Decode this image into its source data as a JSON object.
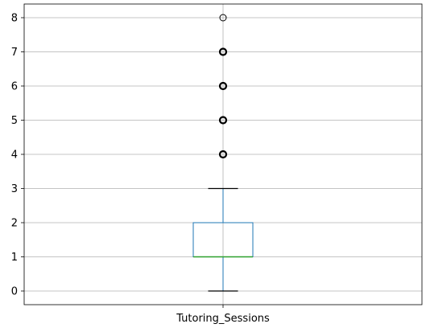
{
  "chart_data": {
    "type": "boxplot",
    "title": "",
    "xlabel": "",
    "ylabel": "",
    "categories": [
      "Tutoring_Sessions"
    ],
    "ylim": [
      -0.4,
      8.4
    ],
    "y_ticks": [
      0,
      1,
      2,
      3,
      4,
      5,
      6,
      7,
      8
    ],
    "y_tick_labels": [
      "0",
      "1",
      "2",
      "3",
      "4",
      "5",
      "6",
      "7",
      "8"
    ],
    "grid": true,
    "legend": "none",
    "boxes": [
      {
        "category": "Tutoring_Sessions",
        "whisker_low": 0,
        "q1": 1,
        "median": 1,
        "q3": 2,
        "whisker_high": 3,
        "outliers": [
          4,
          5,
          6,
          7,
          8
        ]
      }
    ],
    "colors": {
      "box": "#1f77b4",
      "median": "#2ca02c",
      "whisker_cap": "#000000",
      "outlier": "#000000",
      "grid": "#b0b0b0",
      "axes": "#000000"
    }
  }
}
